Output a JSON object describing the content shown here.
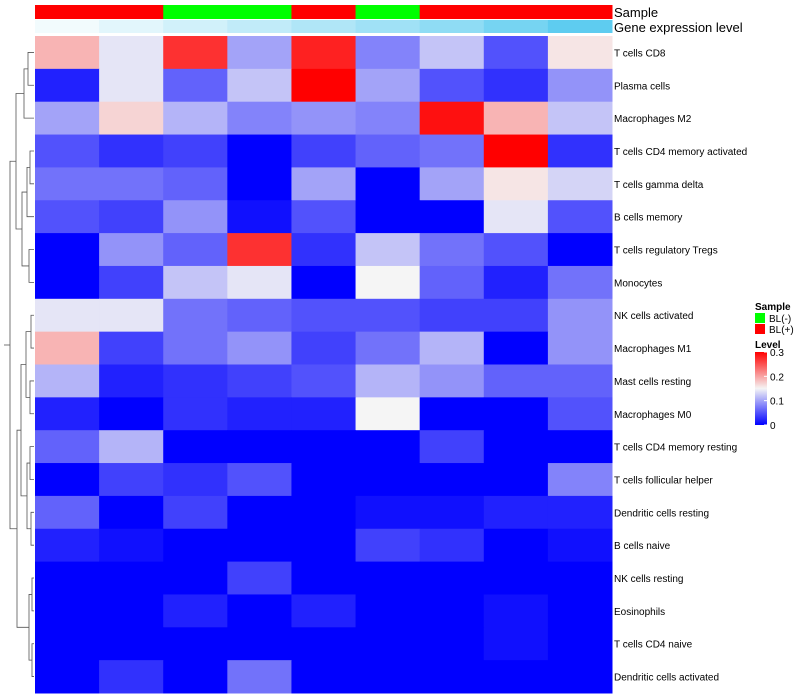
{
  "chart_data": {
    "type": "heatmap",
    "annotation_titles": {
      "sample": "Sample",
      "gene_expression": "Gene expression level"
    },
    "columns": [
      {
        "sample": "BL(+)",
        "gene_expression": 0.0
      },
      {
        "sample": "BL(+)",
        "gene_expression": 0.1
      },
      {
        "sample": "BL(-)",
        "gene_expression": 0.2
      },
      {
        "sample": "BL(-)",
        "gene_expression": 0.3
      },
      {
        "sample": "BL(+)",
        "gene_expression": 0.4
      },
      {
        "sample": "BL(-)",
        "gene_expression": 0.5
      },
      {
        "sample": "BL(+)",
        "gene_expression": 0.6
      },
      {
        "sample": "BL(+)",
        "gene_expression": 0.75
      },
      {
        "sample": "BL(+)",
        "gene_expression": 0.9
      }
    ],
    "rows": [
      "T cells CD8",
      "Plasma cells",
      "Macrophages M2",
      "T cells CD4 memory activated",
      "T cells gamma delta",
      "B cells memory",
      "T cells regulatory  Tregs",
      "Monocytes",
      "NK cells activated",
      "Macrophages M1",
      "Mast cells resting",
      "Macrophages M0",
      "T cells CD4 memory resting",
      "T cells follicular helper",
      "Dendritic cells resting",
      "B cells naive",
      "NK cells resting",
      "Eosinophils",
      "T cells CD4 naive",
      "Dendritic cells activated"
    ],
    "values": [
      [
        0.19,
        0.14,
        0.27,
        0.1,
        0.28,
        0.08,
        0.12,
        0.05,
        0.16
      ],
      [
        0.02,
        0.14,
        0.06,
        0.12,
        0.3,
        0.1,
        0.05,
        0.03,
        0.09
      ],
      [
        0.1,
        0.17,
        0.11,
        0.08,
        0.09,
        0.08,
        0.29,
        0.19,
        0.12
      ],
      [
        0.05,
        0.03,
        0.04,
        0.0,
        0.04,
        0.06,
        0.07,
        0.3,
        0.03
      ],
      [
        0.07,
        0.07,
        0.06,
        0.0,
        0.1,
        0.0,
        0.1,
        0.16,
        0.13
      ],
      [
        0.05,
        0.04,
        0.09,
        0.01,
        0.05,
        0.0,
        0.0,
        0.14,
        0.05
      ],
      [
        0.0,
        0.09,
        0.06,
        0.27,
        0.03,
        0.12,
        0.07,
        0.05,
        0.0
      ],
      [
        0.0,
        0.04,
        0.12,
        0.14,
        0.0,
        0.15,
        0.06,
        0.02,
        0.07
      ],
      [
        0.14,
        0.14,
        0.07,
        0.06,
        0.05,
        0.05,
        0.04,
        0.04,
        0.09
      ],
      [
        0.19,
        0.04,
        0.07,
        0.09,
        0.04,
        0.07,
        0.11,
        0.0,
        0.09
      ],
      [
        0.11,
        0.02,
        0.03,
        0.04,
        0.05,
        0.11,
        0.09,
        0.06,
        0.06
      ],
      [
        0.02,
        0.0,
        0.03,
        0.02,
        0.02,
        0.15,
        0.0,
        0.0,
        0.05
      ],
      [
        0.06,
        0.11,
        0.0,
        0.0,
        0.0,
        0.0,
        0.04,
        0.0,
        0.0
      ],
      [
        0.0,
        0.04,
        0.03,
        0.05,
        0.0,
        0.0,
        0.0,
        0.0,
        0.08
      ],
      [
        0.06,
        0.0,
        0.04,
        0.0,
        0.0,
        0.01,
        0.01,
        0.02,
        0.02
      ],
      [
        0.02,
        0.01,
        0.0,
        0.0,
        0.0,
        0.04,
        0.03,
        0.0,
        0.01
      ],
      [
        0.0,
        0.0,
        0.0,
        0.04,
        0.0,
        0.0,
        0.0,
        0.0,
        0.0
      ],
      [
        0.0,
        0.0,
        0.02,
        0.0,
        0.02,
        0.0,
        0.0,
        0.01,
        0.0
      ],
      [
        0.0,
        0.0,
        0.0,
        0.0,
        0.0,
        0.0,
        0.0,
        0.01,
        0.0
      ],
      [
        0.0,
        0.03,
        0.0,
        0.07,
        0.0,
        0.0,
        0.0,
        0.0,
        0.0
      ]
    ],
    "color_scale": {
      "min": 0,
      "mid": 0.15,
      "max": 0.3,
      "low_color": "#0000ff",
      "mid_color": "#f5f5f5",
      "high_color": "#ff0000"
    },
    "annotation_scale": {
      "low_color": "#f2fbfd",
      "high_color": "#4dc7ee"
    },
    "legend_sample": {
      "title": "Sample",
      "entries": [
        {
          "label": "BL(-)",
          "color": "#00ff00"
        },
        {
          "label": "BL(+)",
          "color": "#ff0000"
        }
      ]
    },
    "legend_level": {
      "title": "Level",
      "ticks": [
        {
          "label": "0.3",
          "value": 0.3
        },
        {
          "label": "0.2",
          "value": 0.2
        },
        {
          "label": "0.1",
          "value": 0.1
        },
        {
          "label": "0",
          "value": 0.0
        }
      ]
    }
  }
}
